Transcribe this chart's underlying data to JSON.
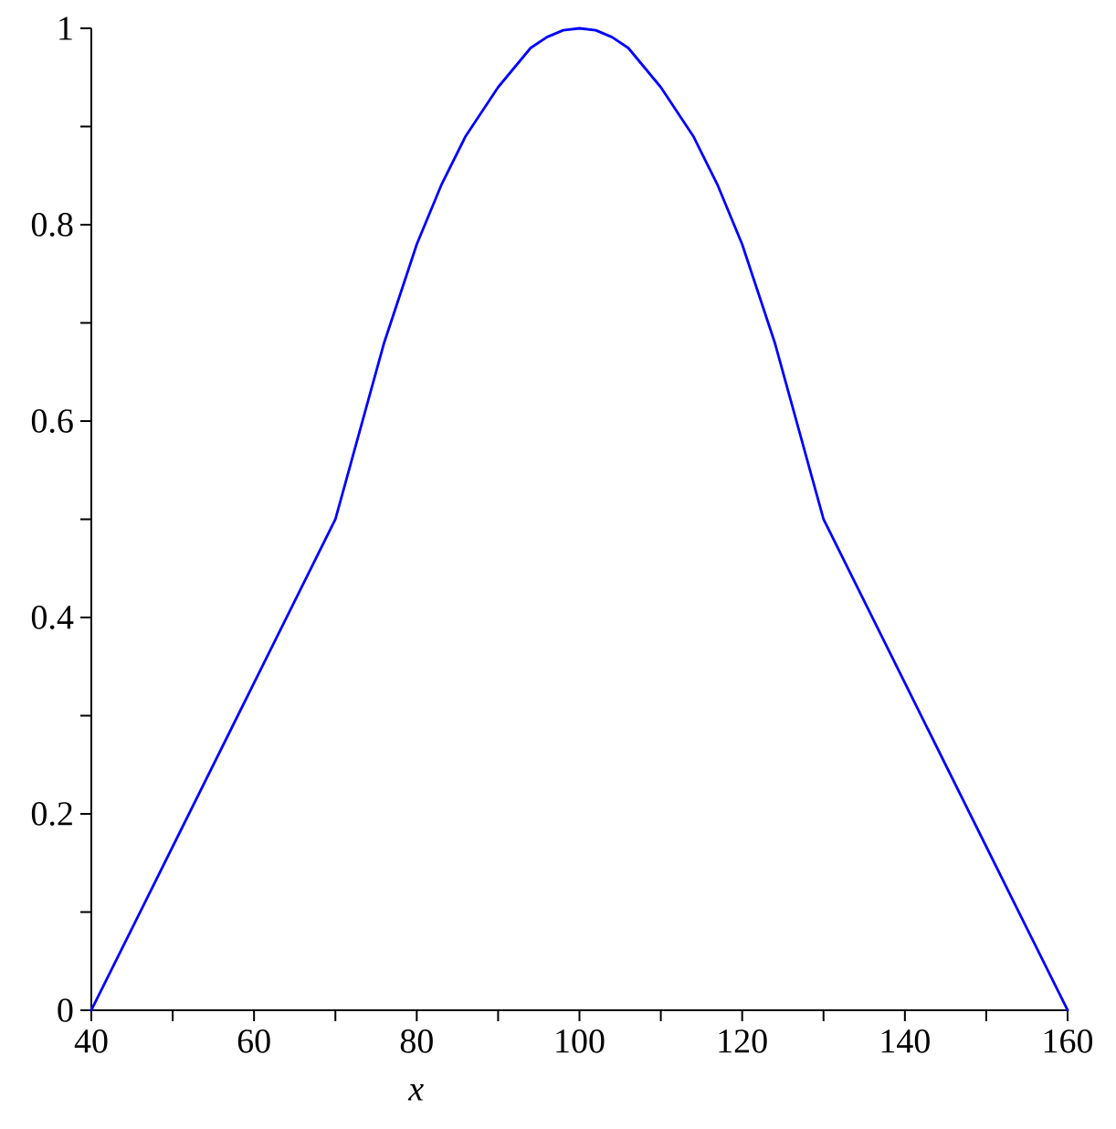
{
  "chart_data": {
    "type": "line",
    "xlabel": "x",
    "color": "#0000ff",
    "x": [
      40,
      70,
      72,
      74,
      76,
      78,
      80,
      83,
      86,
      90,
      94,
      96,
      98,
      100,
      102,
      104,
      106,
      110,
      114,
      117,
      120,
      122,
      124,
      126,
      128,
      130,
      160
    ],
    "values": [
      0,
      0.5,
      0.56,
      0.62,
      0.68,
      0.73,
      0.78,
      0.84,
      0.89,
      0.94,
      0.98,
      0.991,
      0.998,
      1,
      0.998,
      0.991,
      0.98,
      0.94,
      0.89,
      0.84,
      0.78,
      0.73,
      0.68,
      0.62,
      0.56,
      0.5,
      0
    ],
    "xlim": [
      40,
      160
    ],
    "ylim": [
      0,
      1
    ],
    "xticks": [
      40,
      {
        "value": 50,
        "label": null
      },
      60,
      {
        "value": 70,
        "label": null
      },
      80,
      {
        "value": 90,
        "label": null
      },
      100,
      {
        "value": 110,
        "label": null
      },
      120,
      {
        "value": 130,
        "label": null
      },
      140,
      {
        "value": 150,
        "label": null
      },
      160
    ],
    "yticks": [
      0,
      {
        "value": 0.1,
        "label": null
      },
      0.2,
      {
        "value": 0.3,
        "label": null
      },
      0.4,
      {
        "value": 0.5,
        "label": null
      },
      0.6,
      {
        "value": 0.7,
        "label": null
      },
      0.8,
      {
        "value": 0.9,
        "label": null
      },
      1
    ]
  }
}
